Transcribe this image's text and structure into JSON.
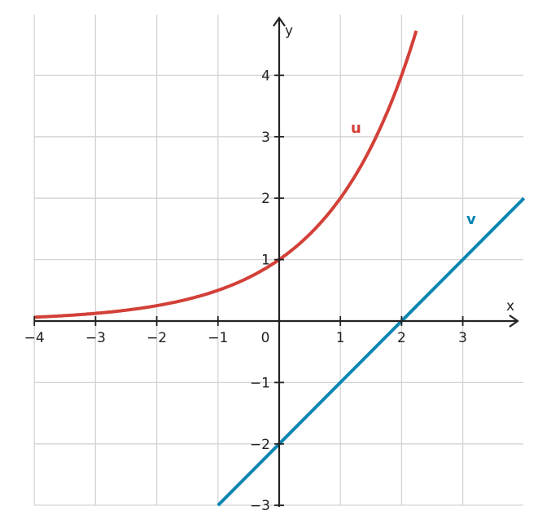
{
  "chart_data": {
    "type": "line",
    "xlabel": "x",
    "ylabel": "y",
    "xlim": [
      -4,
      4
    ],
    "ylim": [
      -3,
      4.75
    ],
    "x_ticks": [
      {
        "value": -4,
        "label": "−4"
      },
      {
        "value": -3,
        "label": "−3"
      },
      {
        "value": -2,
        "label": "−2"
      },
      {
        "value": -1,
        "label": "−1"
      },
      {
        "value": 1,
        "label": "1"
      },
      {
        "value": 2,
        "label": "2"
      },
      {
        "value": 3,
        "label": "3"
      }
    ],
    "y_ticks": [
      {
        "value": -3,
        "label": "−3"
      },
      {
        "value": -2,
        "label": "−2"
      },
      {
        "value": -1,
        "label": "−1"
      },
      {
        "value": 1,
        "label": "1"
      },
      {
        "value": 2,
        "label": "2"
      },
      {
        "value": 3,
        "label": "3"
      },
      {
        "value": 4,
        "label": "4"
      }
    ],
    "origin_label": "0",
    "grid": true,
    "series": [
      {
        "name": "u",
        "color": "#d24038",
        "function": "2^x",
        "points": [
          [
            -4,
            0.0625
          ],
          [
            -3,
            0.125
          ],
          [
            -2,
            0.25
          ],
          [
            -1,
            0.5
          ],
          [
            0,
            1
          ],
          [
            1,
            2
          ],
          [
            2,
            4
          ],
          [
            2.25,
            4.76
          ]
        ]
      },
      {
        "name": "v",
        "color": "#0a86b2",
        "function": "x - 2",
        "points": [
          [
            -1,
            -3
          ],
          [
            0,
            -2
          ],
          [
            1,
            -1
          ],
          [
            2,
            0
          ],
          [
            3,
            1
          ],
          [
            4,
            2
          ]
        ]
      }
    ]
  }
}
